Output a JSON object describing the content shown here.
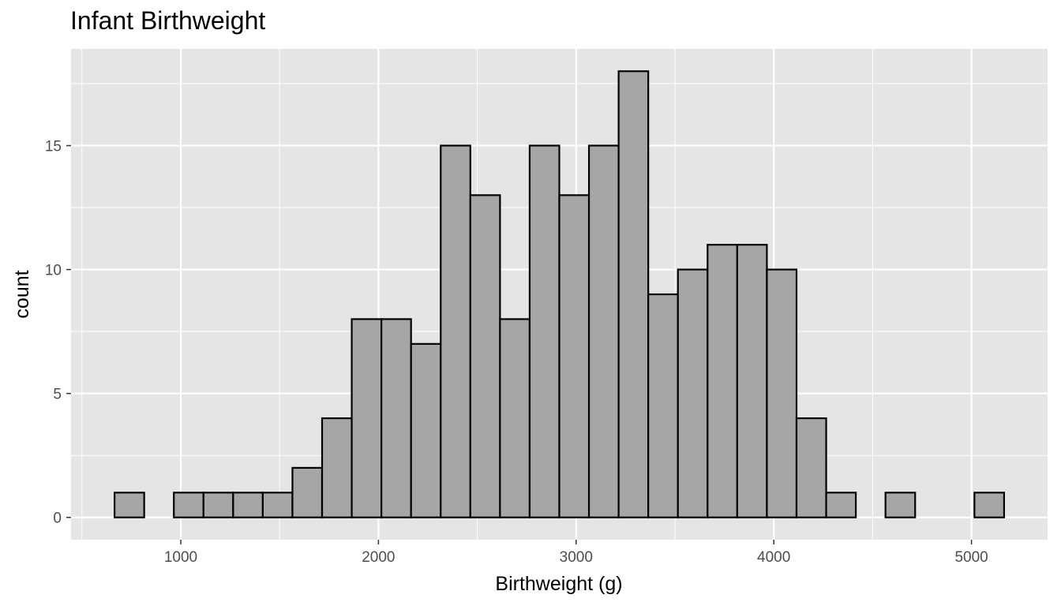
{
  "chart_data": {
    "type": "histogram",
    "title": "Infant Birthweight",
    "xlabel": "Birthweight (g)",
    "ylabel": "count",
    "bin_width": 150,
    "bins": [
      {
        "x0": 665,
        "x1": 815,
        "count": 1
      },
      {
        "x0": 815,
        "x1": 965,
        "count": 0
      },
      {
        "x0": 965,
        "x1": 1115,
        "count": 1
      },
      {
        "x0": 1115,
        "x1": 1265,
        "count": 1
      },
      {
        "x0": 1265,
        "x1": 1415,
        "count": 1
      },
      {
        "x0": 1415,
        "x1": 1565,
        "count": 1
      },
      {
        "x0": 1565,
        "x1": 1715,
        "count": 2
      },
      {
        "x0": 1715,
        "x1": 1865,
        "count": 4
      },
      {
        "x0": 1865,
        "x1": 2015,
        "count": 8
      },
      {
        "x0": 2015,
        "x1": 2165,
        "count": 8
      },
      {
        "x0": 2165,
        "x1": 2315,
        "count": 7
      },
      {
        "x0": 2315,
        "x1": 2465,
        "count": 15
      },
      {
        "x0": 2465,
        "x1": 2615,
        "count": 13
      },
      {
        "x0": 2615,
        "x1": 2765,
        "count": 8
      },
      {
        "x0": 2765,
        "x1": 2915,
        "count": 15
      },
      {
        "x0": 2915,
        "x1": 3065,
        "count": 13
      },
      {
        "x0": 3065,
        "x1": 3215,
        "count": 15
      },
      {
        "x0": 3215,
        "x1": 3365,
        "count": 18
      },
      {
        "x0": 3365,
        "x1": 3515,
        "count": 9
      },
      {
        "x0": 3515,
        "x1": 3665,
        "count": 10
      },
      {
        "x0": 3665,
        "x1": 3815,
        "count": 11
      },
      {
        "x0": 3815,
        "x1": 3965,
        "count": 11
      },
      {
        "x0": 3965,
        "x1": 4115,
        "count": 10
      },
      {
        "x0": 4115,
        "x1": 4265,
        "count": 4
      },
      {
        "x0": 4265,
        "x1": 4415,
        "count": 1
      },
      {
        "x0": 4415,
        "x1": 4565,
        "count": 0
      },
      {
        "x0": 4565,
        "x1": 4715,
        "count": 1
      },
      {
        "x0": 4715,
        "x1": 4865,
        "count": 0
      },
      {
        "x0": 4865,
        "x1": 5015,
        "count": 0
      },
      {
        "x0": 5015,
        "x1": 5165,
        "count": 1
      }
    ],
    "x_ticks": [
      1000,
      2000,
      3000,
      4000,
      5000
    ],
    "y_ticks": [
      0,
      5,
      10,
      15
    ],
    "xlim": [
      445,
      5385
    ],
    "ylim": [
      -0.9,
      18.9
    ],
    "grid": true,
    "panel_background": "#e5e5e5",
    "bar_fill": "#a6a6a6",
    "bar_stroke": "#000000"
  }
}
